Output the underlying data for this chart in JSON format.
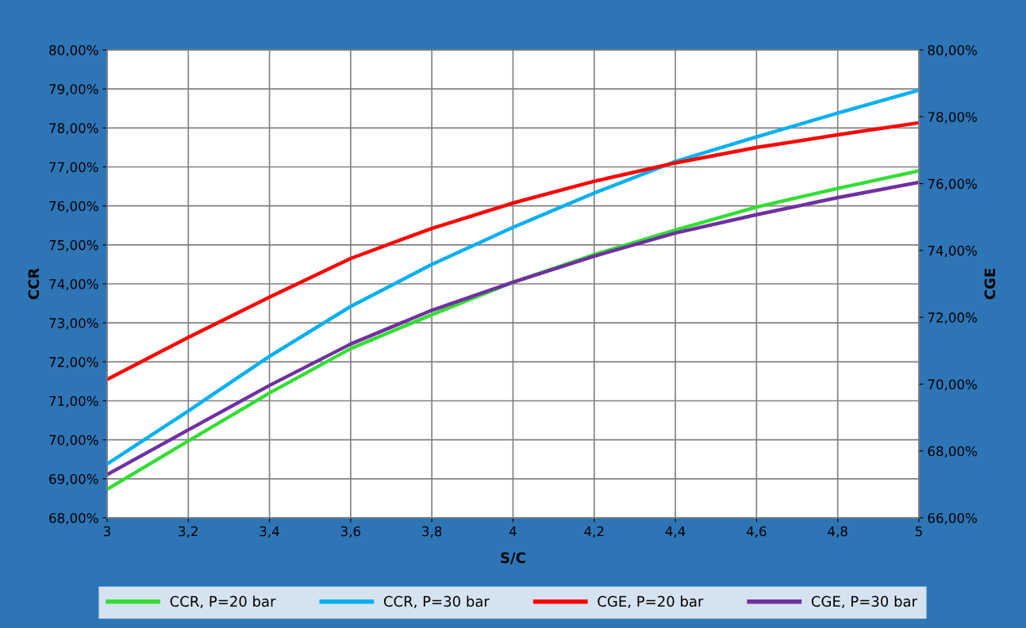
{
  "chart_data": {
    "type": "line",
    "xlabel": "S/C",
    "ylabel": "CCR",
    "y2label": "CGE",
    "x": [
      3,
      3.2,
      3.4,
      3.6,
      3.8,
      4,
      4.2,
      4.4,
      4.6,
      4.8,
      5
    ],
    "series": [
      {
        "name": "CCR, P=20 bar",
        "color": "#33dd33",
        "values": [
          68.73,
          69.97,
          71.2,
          72.34,
          73.21,
          74.04,
          74.75,
          75.38,
          75.97,
          76.45,
          76.9
        ]
      },
      {
        "name": "CCR, P=30 bar",
        "color": "#00b0f0",
        "values": [
          69.38,
          70.74,
          72.14,
          73.42,
          74.5,
          75.45,
          76.33,
          77.14,
          77.77,
          78.38,
          78.97
        ]
      },
      {
        "name": "CGE, P=20 bar",
        "color": "#ff0000",
        "axis": "y2",
        "values": [
          70.14,
          71.4,
          72.6,
          73.76,
          74.66,
          75.42,
          76.07,
          76.62,
          77.08,
          77.46,
          77.82
        ]
      },
      {
        "name": "CGE, P=30 bar",
        "color": "#7030a0",
        "axis": "y2",
        "values": [
          67.29,
          68.63,
          69.96,
          71.2,
          72.21,
          73.05,
          73.83,
          74.52,
          75.07,
          75.58,
          76.04
        ]
      }
    ],
    "xlim": [
      3,
      5
    ],
    "xticks": [
      3,
      {
        "value": 3.2,
        "label": "3,2"
      },
      {
        "value": 3.4,
        "label": "3,4"
      },
      {
        "value": 3.6,
        "label": "3,6"
      },
      {
        "value": 3.8,
        "label": "3,8"
      },
      4,
      {
        "value": 4.2,
        "label": "4,2"
      },
      {
        "value": 4.4,
        "label": "4,4"
      },
      {
        "value": 4.6,
        "label": "4,6"
      },
      {
        "value": 4.8,
        "label": "4,8"
      },
      5
    ],
    "ylim": [
      68,
      80
    ],
    "yticks": [
      {
        "value": 68,
        "label": "68,00%"
      },
      {
        "value": 69,
        "label": "69,00%"
      },
      {
        "value": 70,
        "label": "70,00%"
      },
      {
        "value": 71,
        "label": "71,00%"
      },
      {
        "value": 72,
        "label": "72,00%"
      },
      {
        "value": 73,
        "label": "73,00%"
      },
      {
        "value": 74,
        "label": "74,00%"
      },
      {
        "value": 75,
        "label": "75,00%"
      },
      {
        "value": 76,
        "label": "76,00%"
      },
      {
        "value": 77,
        "label": "77,00%"
      },
      {
        "value": 78,
        "label": "78,00%"
      },
      {
        "value": 79,
        "label": "79,00%"
      },
      {
        "value": 80,
        "label": "80,00%"
      }
    ],
    "y2lim": [
      66,
      80
    ],
    "y2ticks": [
      {
        "value": 66,
        "label": "66,00%"
      },
      {
        "value": 68,
        "label": "68,00%"
      },
      {
        "value": 70,
        "label": "70,00%"
      },
      {
        "value": 72,
        "label": "72,00%"
      },
      {
        "value": 74,
        "label": "74,00%"
      },
      {
        "value": 76,
        "label": "76,00%"
      },
      {
        "value": 78,
        "label": "78,00%"
      },
      {
        "value": 80,
        "label": "80,00%"
      }
    ],
    "grid": true,
    "legend": "bottom",
    "marker": "none",
    "line_style": "solid"
  }
}
